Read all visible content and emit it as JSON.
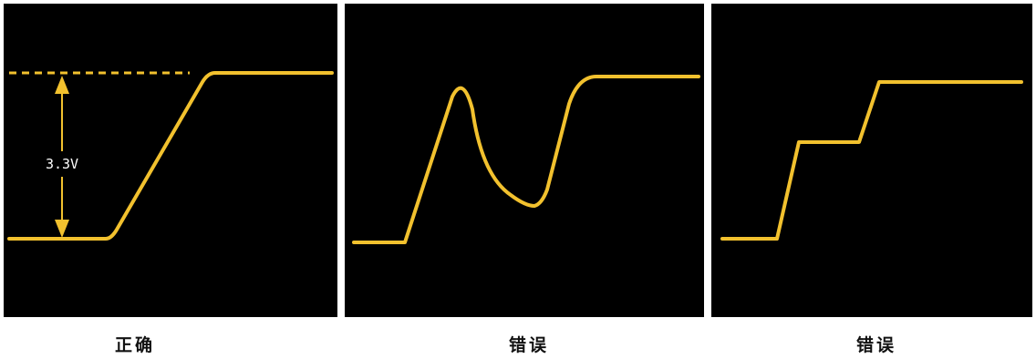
{
  "panels": [
    {
      "label": "正确",
      "waveform": "clean-rising-edge",
      "annotation": {
        "text": "3.3V"
      }
    },
    {
      "label": "错误",
      "waveform": "glitch-rising-edge"
    },
    {
      "label": "错误",
      "waveform": "stepped-rising-edge"
    }
  ],
  "colors": {
    "background": "#000000",
    "waveform": "#f2c12e",
    "annotation": "#f2c12e",
    "divider": "#ffffff"
  }
}
